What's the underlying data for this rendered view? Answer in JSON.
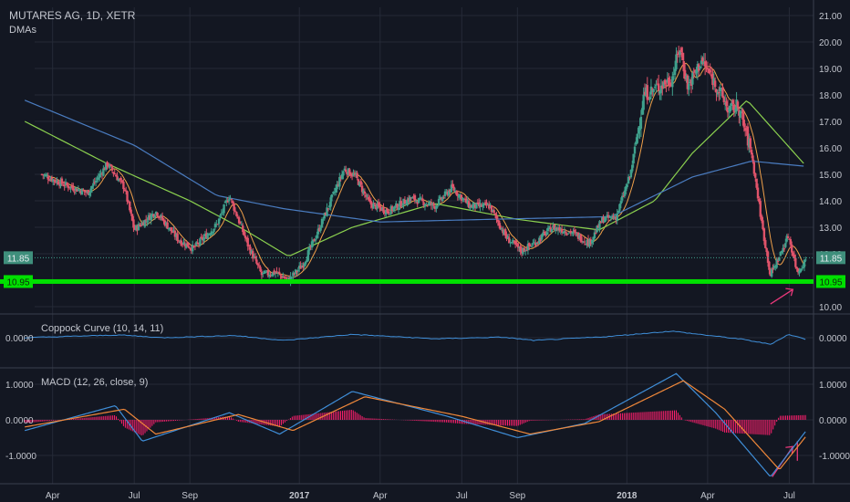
{
  "header": {
    "symbol_line": "MUTARES AG, 1D, XETR",
    "indicator_line": "DMAs"
  },
  "colors": {
    "background": "#131722",
    "grid": "#252a37",
    "text": "#c3c6ce",
    "up": "#3fa08c",
    "down": "#e0536a",
    "ma_fast": "#f0a04a",
    "ma_mid": "#8bd14f",
    "ma_slow": "#4a7cc0",
    "support": "#00e000",
    "coppock": "#3f8ed8",
    "macd": "#3f8ed8",
    "signal": "#f0883a",
    "histogram": "#ff1f6e",
    "annotation": "#e8387a"
  },
  "price_pane": {
    "y_ticks": [
      "21.00",
      "20.00",
      "19.00",
      "18.00",
      "17.00",
      "16.00",
      "15.00",
      "14.00",
      "13.00",
      "12.00",
      "11.00",
      "10.00"
    ],
    "last_price_label": "11.85",
    "support_label": "10.95"
  },
  "coppock_pane": {
    "title": "Coppock Curve (10, 14, 11)",
    "y_ticks": [
      "0.0000"
    ],
    "left_ticks": [
      "0.0000"
    ]
  },
  "macd_pane": {
    "title": "MACD (12, 26, close, 9)",
    "y_ticks": [
      "1.0000",
      "0.0000",
      "-1.0000"
    ],
    "left_ticks": [
      "1.0000",
      "0.0000",
      "-1.0000"
    ]
  },
  "x_axis": {
    "labels": [
      "Apr",
      "Jul",
      "Sep",
      "2017",
      "Apr",
      "Jul",
      "Sep",
      "2018",
      "Apr",
      "Jul"
    ]
  },
  "chart_data": [
    {
      "type": "candlestick",
      "title": "MUTARES AG, 1D, XETR",
      "x_range": [
        "2016-03",
        "2018-07"
      ],
      "y_range": [
        10.0,
        21.0
      ],
      "price_path": [
        {
          "date": "2016-03-20",
          "close": 15.0
        },
        {
          "date": "2016-04-15",
          "close": 14.6
        },
        {
          "date": "2016-05-10",
          "close": 14.3
        },
        {
          "date": "2016-06-01",
          "close": 15.4
        },
        {
          "date": "2016-06-20",
          "close": 14.5
        },
        {
          "date": "2016-07-01",
          "close": 12.9
        },
        {
          "date": "2016-07-25",
          "close": 13.6
        },
        {
          "date": "2016-08-20",
          "close": 12.5
        },
        {
          "date": "2016-09-05",
          "close": 12.2
        },
        {
          "date": "2016-10-01",
          "close": 13.1
        },
        {
          "date": "2016-10-15",
          "close": 14.2
        },
        {
          "date": "2016-10-25",
          "close": 13.3
        },
        {
          "date": "2016-11-05",
          "close": 12.3
        },
        {
          "date": "2016-11-20",
          "close": 11.2
        },
        {
          "date": "2016-12-05",
          "close": 11.3
        },
        {
          "date": "2016-12-20",
          "close": 11.0
        },
        {
          "date": "2017-01-05",
          "close": 11.6
        },
        {
          "date": "2017-01-20",
          "close": 12.7
        },
        {
          "date": "2017-02-05",
          "close": 14.0
        },
        {
          "date": "2017-02-20",
          "close": 15.2
        },
        {
          "date": "2017-03-05",
          "close": 14.9
        },
        {
          "date": "2017-03-20",
          "close": 13.9
        },
        {
          "date": "2017-04-10",
          "close": 13.6
        },
        {
          "date": "2017-05-05",
          "close": 14.1
        },
        {
          "date": "2017-06-01",
          "close": 13.8
        },
        {
          "date": "2017-06-20",
          "close": 14.5
        },
        {
          "date": "2017-07-10",
          "close": 13.8
        },
        {
          "date": "2017-08-01",
          "close": 13.8
        },
        {
          "date": "2017-08-20",
          "close": 12.6
        },
        {
          "date": "2017-09-05",
          "close": 12.1
        },
        {
          "date": "2017-09-20",
          "close": 12.4
        },
        {
          "date": "2017-10-10",
          "close": 13.0
        },
        {
          "date": "2017-11-01",
          "close": 12.8
        },
        {
          "date": "2017-11-20",
          "close": 12.4
        },
        {
          "date": "2017-12-05",
          "close": 13.3
        },
        {
          "date": "2017-12-20",
          "close": 13.4
        },
        {
          "date": "2018-01-05",
          "close": 15.0
        },
        {
          "date": "2018-01-20",
          "close": 18.0
        },
        {
          "date": "2018-02-05",
          "close": 18.3
        },
        {
          "date": "2018-02-20",
          "close": 18.6
        },
        {
          "date": "2018-03-01",
          "close": 19.8
        },
        {
          "date": "2018-03-10",
          "close": 18.3
        },
        {
          "date": "2018-03-25",
          "close": 19.3
        },
        {
          "date": "2018-04-10",
          "close": 18.4
        },
        {
          "date": "2018-04-25",
          "close": 17.4
        },
        {
          "date": "2018-05-05",
          "close": 17.6
        },
        {
          "date": "2018-05-20",
          "close": 15.8
        },
        {
          "date": "2018-06-01",
          "close": 13.0
        },
        {
          "date": "2018-06-10",
          "close": 11.2
        },
        {
          "date": "2018-06-20",
          "close": 11.9
        },
        {
          "date": "2018-06-30",
          "close": 12.7
        },
        {
          "date": "2018-07-10",
          "close": 11.3
        },
        {
          "date": "2018-07-20",
          "close": 11.8
        }
      ],
      "moving_averages": [
        {
          "name": "fast",
          "color_key": "ma_fast"
        },
        {
          "name": "mid",
          "color_key": "ma_mid",
          "path": [
            {
              "date": "2016-03-01",
              "value": 17.0
            },
            {
              "date": "2016-06-01",
              "value": 15.4
            },
            {
              "date": "2016-09-01",
              "value": 14.0
            },
            {
              "date": "2016-11-01",
              "value": 12.9
            },
            {
              "date": "2016-12-20",
              "value": 11.9
            },
            {
              "date": "2017-03-01",
              "value": 13.0
            },
            {
              "date": "2017-06-01",
              "value": 13.9
            },
            {
              "date": "2017-09-01",
              "value": 13.3
            },
            {
              "date": "2017-12-01",
              "value": 12.9
            },
            {
              "date": "2018-02-01",
              "value": 14.0
            },
            {
              "date": "2018-03-15",
              "value": 15.8
            },
            {
              "date": "2018-05-15",
              "value": 17.8
            },
            {
              "date": "2018-07-20",
              "value": 15.3
            }
          ]
        },
        {
          "name": "slow",
          "color_key": "ma_slow",
          "path": [
            {
              "date": "2016-03-01",
              "value": 17.8
            },
            {
              "date": "2016-07-01",
              "value": 16.1
            },
            {
              "date": "2016-10-01",
              "value": 14.2
            },
            {
              "date": "2016-12-15",
              "value": 13.7
            },
            {
              "date": "2017-04-01",
              "value": 13.2
            },
            {
              "date": "2017-08-01",
              "value": 13.3
            },
            {
              "date": "2017-12-15",
              "value": 13.4
            },
            {
              "date": "2018-03-15",
              "value": 14.9
            },
            {
              "date": "2018-05-20",
              "value": 15.5
            },
            {
              "date": "2018-07-20",
              "value": 15.3
            }
          ]
        }
      ],
      "last_price": 11.85,
      "horizontal_lines": [
        {
          "value": 10.95,
          "label": "10.95"
        }
      ]
    },
    {
      "type": "line",
      "title": "Coppock Curve (10, 14, 11)",
      "series": [
        {
          "name": "Coppock Curve (10, 14, 11)",
          "path": [
            {
              "date": "2016-03-01",
              "value": 0.0
            },
            {
              "date": "2016-06-15",
              "value": 0.05
            },
            {
              "date": "2016-08-01",
              "value": 0.0
            },
            {
              "date": "2016-10-20",
              "value": 0.04
            },
            {
              "date": "2016-12-15",
              "value": -0.05
            },
            {
              "date": "2017-03-01",
              "value": 0.06
            },
            {
              "date": "2017-06-01",
              "value": -0.02
            },
            {
              "date": "2017-08-15",
              "value": 0.01
            },
            {
              "date": "2017-09-20",
              "value": -0.05
            },
            {
              "date": "2017-12-10",
              "value": 0.02
            },
            {
              "date": "2018-02-20",
              "value": 0.12
            },
            {
              "date": "2018-05-10",
              "value": -0.03
            },
            {
              "date": "2018-06-10",
              "value": -0.12
            },
            {
              "date": "2018-06-30",
              "value": 0.06
            },
            {
              "date": "2018-07-20",
              "value": -0.03
            }
          ]
        }
      ]
    },
    {
      "type": "line",
      "title": "MACD (12, 26, close, 9)",
      "y_range": [
        -1.7,
        1.3
      ],
      "series": [
        {
          "name": "MACD",
          "path": [
            {
              "date": "2016-03-01",
              "value": -0.3
            },
            {
              "date": "2016-06-10",
              "value": 0.4
            },
            {
              "date": "2016-07-10",
              "value": -0.6
            },
            {
              "date": "2016-10-15",
              "value": 0.2
            },
            {
              "date": "2016-12-10",
              "value": -0.4
            },
            {
              "date": "2017-03-01",
              "value": 0.8
            },
            {
              "date": "2017-06-15",
              "value": 0.1
            },
            {
              "date": "2017-09-01",
              "value": -0.5
            },
            {
              "date": "2017-11-15",
              "value": -0.1
            },
            {
              "date": "2018-02-25",
              "value": 1.3
            },
            {
              "date": "2018-04-10",
              "value": 0.2
            },
            {
              "date": "2018-06-10",
              "value": -1.6
            },
            {
              "date": "2018-07-20",
              "value": -0.3
            }
          ]
        },
        {
          "name": "Signal",
          "path": [
            {
              "date": "2016-03-01",
              "value": -0.2
            },
            {
              "date": "2016-06-20",
              "value": 0.3
            },
            {
              "date": "2016-07-25",
              "value": -0.4
            },
            {
              "date": "2016-10-25",
              "value": 0.15
            },
            {
              "date": "2016-12-25",
              "value": -0.3
            },
            {
              "date": "2017-03-15",
              "value": 0.65
            },
            {
              "date": "2017-07-01",
              "value": 0.1
            },
            {
              "date": "2017-09-15",
              "value": -0.4
            },
            {
              "date": "2017-12-01",
              "value": -0.05
            },
            {
              "date": "2018-03-05",
              "value": 1.1
            },
            {
              "date": "2018-04-20",
              "value": 0.3
            },
            {
              "date": "2018-06-20",
              "value": -1.4
            },
            {
              "date": "2018-07-20",
              "value": -0.45
            }
          ]
        }
      ]
    }
  ]
}
